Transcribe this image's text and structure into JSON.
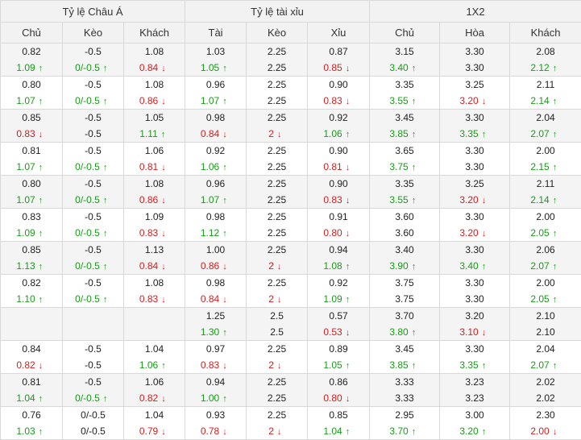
{
  "headers": {
    "group_asian": "Tỷ lệ Châu Á",
    "group_ou": "Tỷ lệ tài xỉu",
    "group_1x2": "1X2",
    "asian_home": "Chủ",
    "asian_line": "Kèo",
    "asian_away": "Khách",
    "ou_over": "Tài",
    "ou_line": "Kèo",
    "ou_under": "Xỉu",
    "x12_home": "Chủ",
    "x12_draw": "Hòa",
    "x12_away": "Khách"
  },
  "arrows": {
    "up": "↑",
    "down": "↓"
  },
  "colors": {
    "up": "#1a9b1a",
    "down": "#d21f1f",
    "header_bg": "#f2f2f2",
    "row_alt_bg": "#f4f4f4",
    "border": "#d9d9d9"
  },
  "rows": [
    [
      [
        "0.82",
        "1.09",
        "up"
      ],
      [
        "-0.5",
        "0/-0.5",
        "up"
      ],
      [
        "1.08",
        "0.84",
        "down"
      ],
      [
        "1.03",
        "1.05",
        "up"
      ],
      [
        "2.25",
        "2.25",
        ""
      ],
      [
        "0.87",
        "0.85",
        "down"
      ],
      [
        "3.15",
        "3.40",
        "up"
      ],
      [
        "3.30",
        "3.30",
        ""
      ],
      [
        "2.08",
        "2.12",
        "up"
      ]
    ],
    [
      [
        "0.80",
        "1.07",
        "up"
      ],
      [
        "-0.5",
        "0/-0.5",
        "up"
      ],
      [
        "1.08",
        "0.86",
        "down"
      ],
      [
        "0.96",
        "1.07",
        "up"
      ],
      [
        "2.25",
        "2.25",
        ""
      ],
      [
        "0.90",
        "0.83",
        "down"
      ],
      [
        "3.35",
        "3.55",
        "up"
      ],
      [
        "3.25",
        "3.20",
        "down"
      ],
      [
        "2.11",
        "2.14",
        "up"
      ]
    ],
    [
      [
        "0.85",
        "0.83",
        "down"
      ],
      [
        "-0.5",
        "-0.5",
        ""
      ],
      [
        "1.05",
        "1.11",
        "up"
      ],
      [
        "0.98",
        "0.84",
        "down"
      ],
      [
        "2.25",
        "2",
        "down"
      ],
      [
        "0.92",
        "1.06",
        "up"
      ],
      [
        "3.45",
        "3.85",
        "up"
      ],
      [
        "3.30",
        "3.35",
        "up"
      ],
      [
        "2.04",
        "2.07",
        "up"
      ]
    ],
    [
      [
        "0.81",
        "1.07",
        "up"
      ],
      [
        "-0.5",
        "0/-0.5",
        "up"
      ],
      [
        "1.06",
        "0.81",
        "down"
      ],
      [
        "0.92",
        "1.06",
        "up"
      ],
      [
        "2.25",
        "2.25",
        ""
      ],
      [
        "0.90",
        "0.81",
        "down"
      ],
      [
        "3.65",
        "3.75",
        "up"
      ],
      [
        "3.30",
        "3.30",
        ""
      ],
      [
        "2.00",
        "2.15",
        "up"
      ]
    ],
    [
      [
        "0.80",
        "1.07",
        "up"
      ],
      [
        "-0.5",
        "0/-0.5",
        "up"
      ],
      [
        "1.08",
        "0.86",
        "down"
      ],
      [
        "0.96",
        "1.07",
        "up"
      ],
      [
        "2.25",
        "2.25",
        ""
      ],
      [
        "0.90",
        "0.83",
        "down"
      ],
      [
        "3.35",
        "3.55",
        "up"
      ],
      [
        "3.25",
        "3.20",
        "down"
      ],
      [
        "2.11",
        "2.14",
        "up"
      ]
    ],
    [
      [
        "0.83",
        "1.09",
        "up"
      ],
      [
        "-0.5",
        "0/-0.5",
        "up"
      ],
      [
        "1.09",
        "0.83",
        "down"
      ],
      [
        "0.98",
        "1.12",
        "up"
      ],
      [
        "2.25",
        "2.25",
        ""
      ],
      [
        "0.91",
        "0.80",
        "down"
      ],
      [
        "3.60",
        "3.60",
        ""
      ],
      [
        "3.30",
        "3.20",
        "down"
      ],
      [
        "2.00",
        "2.05",
        "up"
      ]
    ],
    [
      [
        "0.85",
        "1.13",
        "up"
      ],
      [
        "-0.5",
        "0/-0.5",
        "up"
      ],
      [
        "1.13",
        "0.84",
        "down"
      ],
      [
        "1.00",
        "0.86",
        "down"
      ],
      [
        "2.25",
        "2",
        "down"
      ],
      [
        "0.94",
        "1.08",
        "up"
      ],
      [
        "3.40",
        "3.90",
        "up"
      ],
      [
        "3.30",
        "3.40",
        "up"
      ],
      [
        "2.06",
        "2.07",
        "up"
      ]
    ],
    [
      [
        "0.82",
        "1.10",
        "up"
      ],
      [
        "-0.5",
        "0/-0.5",
        "up"
      ],
      [
        "1.08",
        "0.83",
        "down"
      ],
      [
        "0.98",
        "0.84",
        "down"
      ],
      [
        "2.25",
        "2",
        "down"
      ],
      [
        "0.92",
        "1.09",
        "up"
      ],
      [
        "3.75",
        "3.75",
        ""
      ],
      [
        "3.30",
        "3.30",
        ""
      ],
      [
        "2.00",
        "2.05",
        "up"
      ]
    ],
    [
      [
        "",
        "",
        ""
      ],
      [
        "",
        "",
        ""
      ],
      [
        "",
        "",
        ""
      ],
      [
        "1.25",
        "1.30",
        "up"
      ],
      [
        "2.5",
        "2.5",
        ""
      ],
      [
        "0.57",
        "0.53",
        "down"
      ],
      [
        "3.70",
        "3.80",
        "up"
      ],
      [
        "3.20",
        "3.10",
        "down"
      ],
      [
        "2.10",
        "2.10",
        ""
      ]
    ],
    [
      [
        "0.84",
        "0.82",
        "down"
      ],
      [
        "-0.5",
        "-0.5",
        ""
      ],
      [
        "1.04",
        "1.06",
        "up"
      ],
      [
        "0.97",
        "0.83",
        "down"
      ],
      [
        "2.25",
        "2",
        "down"
      ],
      [
        "0.89",
        "1.05",
        "up"
      ],
      [
        "3.45",
        "3.85",
        "up"
      ],
      [
        "3.30",
        "3.35",
        "up"
      ],
      [
        "2.04",
        "2.07",
        "up"
      ]
    ],
    [
      [
        "0.81",
        "1.04",
        "up"
      ],
      [
        "-0.5",
        "0/-0.5",
        "up"
      ],
      [
        "1.06",
        "0.82",
        "down"
      ],
      [
        "0.94",
        "1.00",
        "up"
      ],
      [
        "2.25",
        "2.25",
        ""
      ],
      [
        "0.86",
        "0.80",
        "down"
      ],
      [
        "3.33",
        "3.33",
        ""
      ],
      [
        "3.23",
        "3.23",
        ""
      ],
      [
        "2.02",
        "2.02",
        ""
      ]
    ],
    [
      [
        "0.76",
        "1.03",
        "up"
      ],
      [
        "0/-0.5",
        "0/-0.5",
        ""
      ],
      [
        "1.04",
        "0.79",
        "down"
      ],
      [
        "0.93",
        "0.78",
        "down"
      ],
      [
        "2.25",
        "2",
        "down"
      ],
      [
        "0.85",
        "1.04",
        "up"
      ],
      [
        "2.95",
        "3.70",
        "up"
      ],
      [
        "3.00",
        "3.20",
        "up"
      ],
      [
        "2.30",
        "2.00",
        "down"
      ]
    ]
  ]
}
